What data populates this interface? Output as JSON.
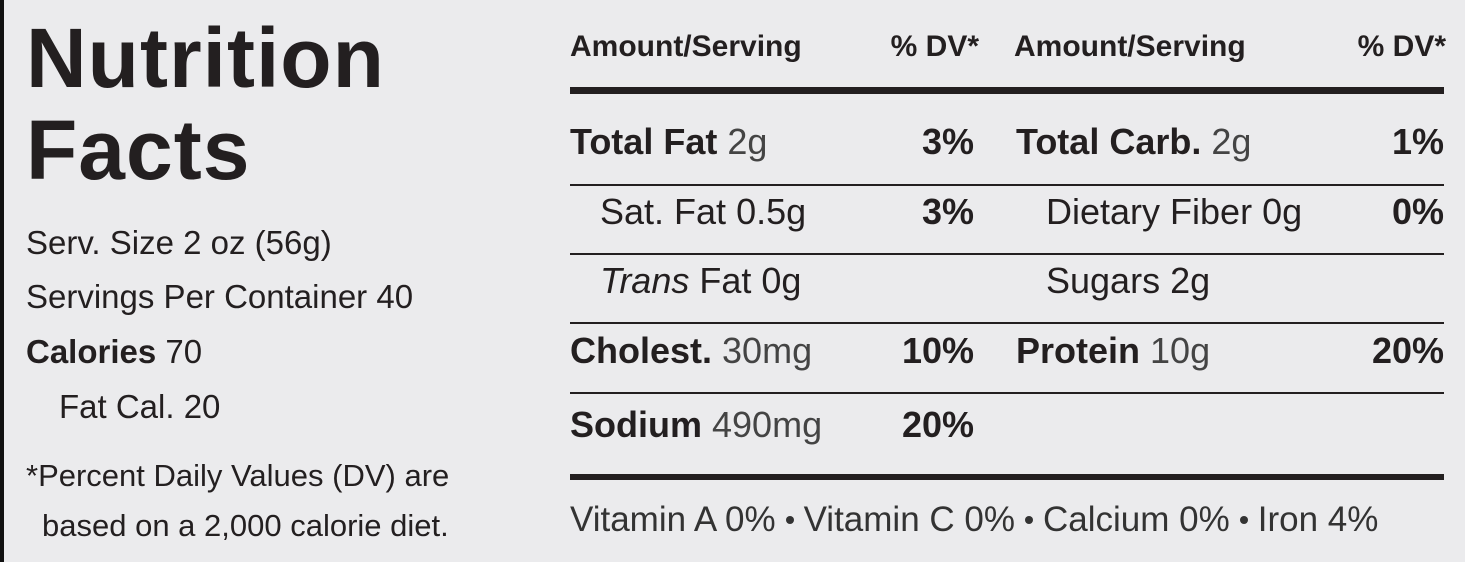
{
  "title": [
    "Nutrition",
    "Facts"
  ],
  "left_column": {
    "serving_size": "Serv. Size 2 oz (56g)",
    "servings": "Servings Per Container 40",
    "calories_label": "Calories",
    "calories_value": "70",
    "fat_calories": "Fat Cal. 20",
    "footnote": [
      "*Percent Daily Values (DV) are",
      "based on a 2,000 calorie diet."
    ]
  },
  "header": {
    "amount_left": "Amount/Serving",
    "dv_left": "% DV*",
    "amount_right": "Amount/Serving",
    "dv_right": "% DV*"
  },
  "nutrients_left": [
    {
      "name": "Total Fat",
      "amount": "2g",
      "dv": "3%",
      "style": "main"
    },
    {
      "name": "Sat. Fat",
      "amount": "0.5g",
      "dv": "3%",
      "style": "sub"
    },
    {
      "name": "Trans",
      "amount": "Fat 0g",
      "style": "sub-italic"
    },
    {
      "name": "Cholest.",
      "amount": "30mg",
      "dv": "10%",
      "style": "main"
    },
    {
      "name": "Sodium",
      "amount": "490mg",
      "dv": "20%",
      "style": "main"
    }
  ],
  "nutrients_right": [
    {
      "name": "Total Carb.",
      "amount": "2g",
      "dv": "1%",
      "style": "main"
    },
    {
      "name": "Dietary Fiber",
      "amount": "0g",
      "dv": "0%",
      "style": "sub"
    },
    {
      "name": "Sugars",
      "amount": "2g",
      "style": "sub"
    },
    {
      "name": "Protein",
      "amount": "10g",
      "dv": "20%",
      "style": "main"
    }
  ],
  "vitamins": [
    "Vitamin A 0%",
    "Vitamin C 0%",
    "Calcium 0%",
    "Iron 4%"
  ]
}
